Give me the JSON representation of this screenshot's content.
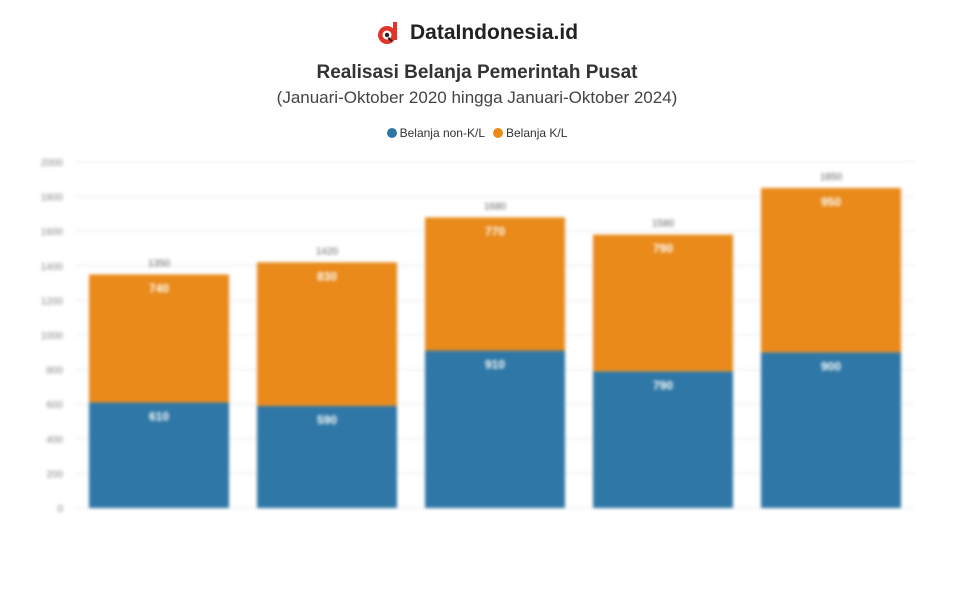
{
  "brand": {
    "name": "DataIndonesia.id",
    "logo_icon": "dataindonesia-logo-icon"
  },
  "header": {
    "title": "Realisasi Belanja Pemerintah Pusat",
    "subtitle": "(Januari-Oktober 2020 hingga Januari-Oktober 2024)"
  },
  "legend": [
    {
      "label": "Belanja non-K/L",
      "color": "#2f77a6"
    },
    {
      "label": "Belanja K/L",
      "color": "#e98a1b"
    }
  ],
  "chart_data": {
    "type": "bar",
    "stacked": true,
    "categories": [
      "",
      "",
      "",
      "",
      ""
    ],
    "series": [
      {
        "name": "Belanja non-K/L",
        "color": "#2f77a6",
        "values": [
          610,
          590,
          910,
          790,
          900
        ]
      },
      {
        "name": "Belanja K/L",
        "color": "#e98a1b",
        "values": [
          740,
          830,
          770,
          790,
          950
        ]
      }
    ],
    "ylabel": "",
    "ylim": [
      0,
      2000
    ],
    "yticks": [
      0,
      200,
      400,
      600,
      800,
      1000,
      1200,
      1400,
      1600,
      1800,
      2000
    ],
    "grid": true,
    "legend_position": "top"
  }
}
